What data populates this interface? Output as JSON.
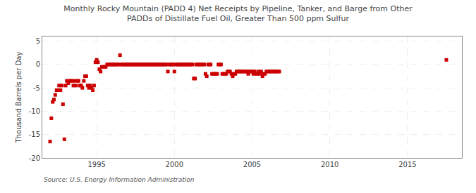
{
  "chart_data": {
    "type": "scatter",
    "title": "Monthly Rocky Mountain (PADD 4) Net Receipts by Pipeline, Tanker, and Barge from Other\nPADDs of Distillate Fuel Oil, Greater Than 500 ppm Sulfur",
    "ylabel": "Thousand Barrels per Day",
    "source": "Source: U.S. Energy Information Administration",
    "color": "#cc0000",
    "marker": "square",
    "grid": true,
    "xlim": [
      1991.5,
      2018.5
    ],
    "ylim": [
      -20,
      6
    ],
    "xticks": [
      1995,
      2000,
      2005,
      2010,
      2015
    ],
    "yticks": [
      -20,
      -15,
      -10,
      -5,
      0,
      5
    ],
    "x": [
      1992.0,
      1992.08,
      1992.17,
      1992.25,
      1992.33,
      1992.42,
      1992.5,
      1992.58,
      1992.67,
      1992.75,
      1992.83,
      1992.92,
      1993.0,
      1993.08,
      1993.17,
      1993.25,
      1993.33,
      1993.42,
      1993.5,
      1993.58,
      1993.67,
      1993.75,
      1993.83,
      1993.92,
      1994.0,
      1994.08,
      1994.17,
      1994.25,
      1994.33,
      1994.42,
      1994.5,
      1994.58,
      1994.67,
      1994.75,
      1994.83,
      1994.92,
      1995.0,
      1995.08,
      1995.17,
      1995.25,
      1995.33,
      1995.42,
      1995.5,
      1995.58,
      1995.67,
      1995.75,
      1995.83,
      1995.92,
      1996.0,
      1996.08,
      1996.17,
      1996.25,
      1996.33,
      1996.42,
      1996.5,
      1996.58,
      1996.67,
      1996.75,
      1996.83,
      1996.92,
      1997.0,
      1997.08,
      1997.17,
      1997.25,
      1997.33,
      1997.42,
      1997.5,
      1997.58,
      1997.67,
      1997.75,
      1997.83,
      1997.92,
      1998.0,
      1998.08,
      1998.17,
      1998.25,
      1998.33,
      1998.42,
      1998.5,
      1998.58,
      1998.67,
      1998.75,
      1998.83,
      1998.92,
      1999.0,
      1999.08,
      1999.17,
      1999.25,
      1999.33,
      1999.42,
      1999.5,
      1999.58,
      1999.67,
      1999.75,
      1999.83,
      1999.92,
      2000.0,
      2000.08,
      2000.17,
      2000.25,
      2000.33,
      2000.42,
      2000.5,
      2000.58,
      2000.67,
      2000.75,
      2000.83,
      2000.92,
      2001.0,
      2001.08,
      2001.17,
      2001.25,
      2001.33,
      2001.42,
      2001.5,
      2001.58,
      2001.67,
      2001.75,
      2001.83,
      2001.92,
      2002.0,
      2002.08,
      2002.17,
      2002.25,
      2002.33,
      2002.42,
      2002.5,
      2002.58,
      2002.67,
      2002.75,
      2002.83,
      2002.92,
      2003.0,
      2003.08,
      2003.17,
      2003.25,
      2003.33,
      2003.42,
      2003.5,
      2003.58,
      2003.67,
      2003.75,
      2003.83,
      2003.92,
      2004.0,
      2004.08,
      2004.17,
      2004.25,
      2004.33,
      2004.42,
      2004.5,
      2004.58,
      2004.67,
      2004.75,
      2004.83,
      2004.92,
      2005.0,
      2005.08,
      2005.17,
      2005.25,
      2005.33,
      2005.42,
      2005.5,
      2005.58,
      2005.67,
      2005.75,
      2005.83,
      2005.92,
      2006.0,
      2006.08,
      2006.17,
      2006.25,
      2006.33,
      2006.42,
      2006.5,
      2006.58,
      2006.67,
      2006.75,
      2017.5
    ],
    "values": [
      -16.5,
      -11.5,
      -8.0,
      -7.5,
      -6.5,
      -5.5,
      -5.5,
      -4.5,
      -5.5,
      -4.5,
      -8.5,
      -16.0,
      -4.5,
      -3.5,
      -4.0,
      -3.5,
      -3.5,
      -3.5,
      -4.5,
      -3.5,
      -4.5,
      -3.5,
      -3.5,
      -4.5,
      -4.5,
      -5.0,
      -3.5,
      -2.5,
      -2.5,
      -4.5,
      -5.0,
      -4.5,
      -5.0,
      -5.5,
      -4.5,
      0.5,
      1.0,
      0.5,
      -1.0,
      -1.5,
      -0.5,
      -0.5,
      -0.5,
      -0.5,
      0.0,
      0.0,
      0.0,
      0.0,
      0.0,
      0.0,
      0.0,
      0.0,
      0.0,
      0.0,
      2.0,
      0.0,
      0.0,
      0.0,
      0.0,
      0.0,
      0.0,
      0.0,
      0.0,
      0.0,
      0.0,
      0.0,
      0.0,
      0.0,
      0.0,
      0.0,
      0.0,
      0.0,
      0.0,
      0.0,
      0.0,
      0.0,
      0.0,
      0.0,
      0.0,
      0.0,
      0.0,
      0.0,
      0.0,
      0.0,
      0.0,
      0.0,
      0.0,
      0.0,
      0.0,
      0.0,
      0.0,
      -1.5,
      0.0,
      0.0,
      0.0,
      0.0,
      -1.5,
      0.0,
      0.0,
      0.0,
      0.0,
      0.0,
      0.0,
      0.0,
      0.0,
      0.0,
      0.0,
      0.0,
      0.0,
      0.0,
      0.0,
      -3.0,
      -3.0,
      0.0,
      0.0,
      0.0,
      0.0,
      0.0,
      0.0,
      0.0,
      -2.0,
      -2.5,
      0.0,
      0.0,
      0.0,
      -2.0,
      -2.0,
      -2.0,
      -2.0,
      -2.0,
      0.0,
      0.0,
      0.0,
      -2.0,
      -2.0,
      -2.0,
      -2.0,
      -1.5,
      -1.5,
      -1.5,
      -2.0,
      -2.5,
      -2.0,
      -2.0,
      -1.5,
      -1.5,
      -1.5,
      -1.5,
      -1.5,
      -1.5,
      -1.5,
      -1.5,
      -1.5,
      -2.0,
      -1.5,
      -1.5,
      -1.5,
      -2.0,
      -1.5,
      -2.0,
      -2.0,
      -1.5,
      -2.0,
      -1.5,
      -2.5,
      -2.0,
      -2.0,
      -1.5,
      -1.5,
      -1.5,
      -1.5,
      -1.5,
      -1.5,
      -1.5,
      -1.5,
      -1.5,
      -1.5,
      -1.5,
      1.0
    ]
  }
}
